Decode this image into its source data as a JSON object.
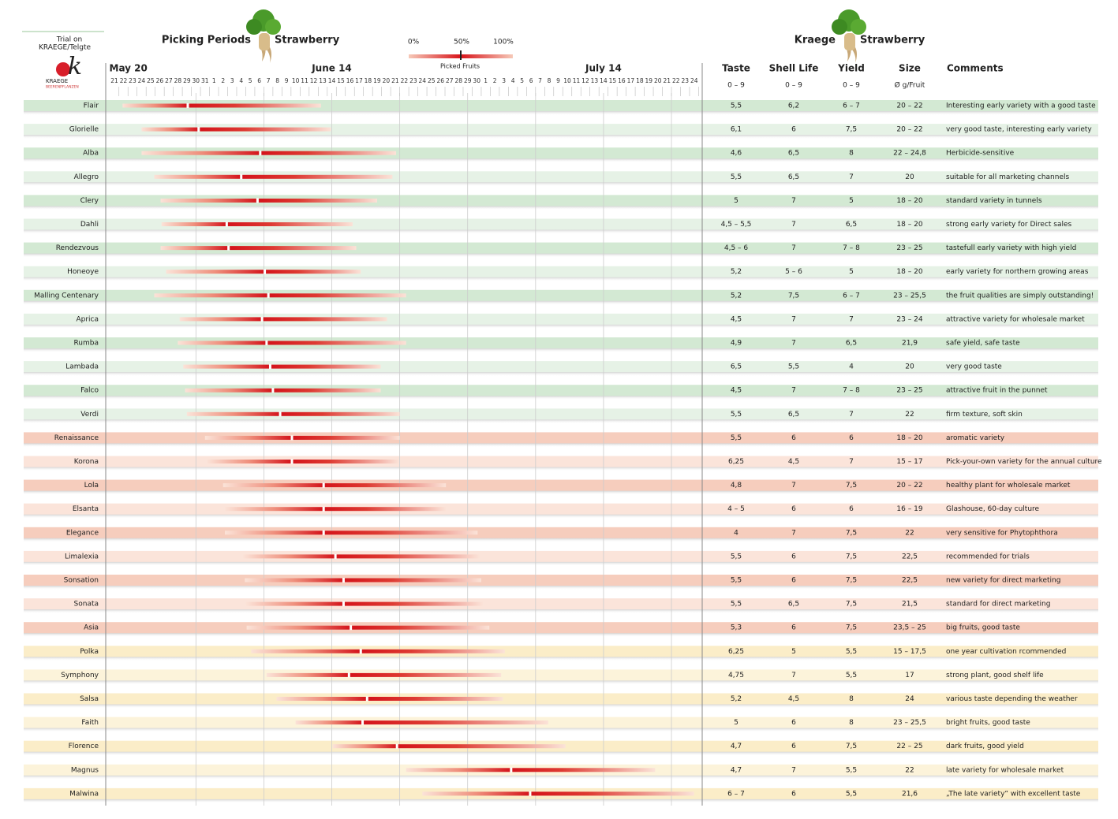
{
  "header": {
    "trial": "Trial on",
    "location": "KRAEGE/Telgte",
    "logo_letter": "k",
    "logo_name": "KRAEGE",
    "logo_sub": "BEERENPFLANZEN",
    "title": "Picking Periods",
    "title_crop": "Strawberry",
    "right_title": "Kraege",
    "right_crop": "Strawberry"
  },
  "legend": {
    "ticks": [
      "0%",
      "50%",
      "100%"
    ],
    "label": "Picked Fruits"
  },
  "timeline": {
    "months": [
      {
        "label": "May 20",
        "day": -1
      },
      {
        "label": "June 14",
        "day": 24
      },
      {
        "label": "July 14",
        "day": 54
      }
    ],
    "days": [
      21,
      22,
      23,
      24,
      25,
      26,
      27,
      28,
      29,
      30,
      31,
      1,
      2,
      3,
      4,
      5,
      6,
      7,
      8,
      9,
      10,
      11,
      12,
      13,
      14,
      15,
      16,
      17,
      18,
      19,
      20,
      21,
      22,
      23,
      24,
      25,
      26,
      27,
      28,
      29,
      30,
      1,
      2,
      3,
      4,
      5,
      6,
      7,
      8,
      9,
      10,
      11,
      12,
      13,
      14,
      15,
      16,
      17,
      18,
      19,
      20,
      21,
      22,
      23,
      24
    ]
  },
  "columns": {
    "taste": "Taste",
    "shell_life": "Shell Life",
    "yield": "Yield",
    "size": "Size",
    "comments": "Comments",
    "taste_scale": "0 – 9",
    "shell_life_scale": "0 – 9",
    "yield_scale": "0 – 9",
    "size_unit": "Ø g/Fruit"
  },
  "rows": [
    {
      "name": "Flair",
      "start": 0.9,
      "half": 8.1,
      "end": 22.8,
      "taste": "5,5",
      "shell_life": "6,2",
      "yield": "6 – 7",
      "size": "20 – 22",
      "comment": "Interesting early variety with a good taste"
    },
    {
      "name": "Glorielle",
      "start": 3.0,
      "half": 9.3,
      "end": 23.9,
      "taste": "6,1",
      "shell_life": "6",
      "yield": "7,5",
      "size": "20 – 22",
      "comment": "very good taste, interesting early variety"
    },
    {
      "name": "Alba",
      "start": 3.0,
      "half": 16.1,
      "end": 31.1,
      "taste": "4,6",
      "shell_life": "6,5",
      "yield": "8",
      "size": "22 – 24,8",
      "comment": "Herbicide-sensitive"
    },
    {
      "name": "Allegro",
      "start": 4.4,
      "half": 14.0,
      "end": 30.7,
      "taste": "5,5",
      "shell_life": "6,5",
      "yield": "7",
      "size": "20",
      "comment": "suitable for all marketing channels"
    },
    {
      "name": "Clery",
      "start": 5.1,
      "half": 15.8,
      "end": 29.0,
      "taste": "5",
      "shell_life": "7",
      "yield": "5",
      "size": "18 – 20",
      "comment": "standard variety in tunnels"
    },
    {
      "name": "Dahli",
      "start": 5.2,
      "half": 12.4,
      "end": 26.3,
      "taste": "4,5 – 5,5",
      "shell_life": "7",
      "yield": "6,5",
      "size": "18 – 20",
      "comment": "strong early variety for Direct sales"
    },
    {
      "name": "Rendezvous",
      "start": 5.1,
      "half": 12.6,
      "end": 26.7,
      "taste": "4,5 – 6",
      "shell_life": "7",
      "yield": "7 – 8",
      "size": "23 – 25",
      "comment": "tastefull early variety with high yield"
    },
    {
      "name": "Honeoye",
      "start": 5.7,
      "half": 16.6,
      "end": 27.2,
      "taste": "5,2",
      "shell_life": "5 – 6",
      "yield": "5",
      "size": "18 – 20",
      "comment": "early variety for northern growing areas"
    },
    {
      "name": "Malling Centenary",
      "start": 4.4,
      "half": 17.0,
      "end": 32.2,
      "taste": "5,2",
      "shell_life": "7,5",
      "yield": "6 – 7",
      "size": "23 – 25,5",
      "comment": "the fruit qualities are simply outstanding!"
    },
    {
      "name": "Aprica",
      "start": 7.2,
      "half": 16.3,
      "end": 30.1,
      "taste": "4,5",
      "shell_life": "7",
      "yield": "7",
      "size": "23 – 24",
      "comment": "attractive variety for wholesale market"
    },
    {
      "name": "Rumba",
      "start": 7.0,
      "half": 16.8,
      "end": 32.2,
      "taste": "4,9",
      "shell_life": "7",
      "yield": "6,5",
      "size": "21,9",
      "comment": "safe yield, safe taste"
    },
    {
      "name": "Lambada",
      "start": 7.6,
      "half": 17.2,
      "end": 29.4,
      "taste": "6,5",
      "shell_life": "5,5",
      "yield": "4",
      "size": "20",
      "comment": "very good taste"
    },
    {
      "name": "Falco",
      "start": 7.8,
      "half": 17.5,
      "end": 29.4,
      "taste": "4,5",
      "shell_life": "7",
      "yield": "7 – 8",
      "size": "23 – 25",
      "comment": "attractive fruit in the punnet"
    },
    {
      "name": "Verdi",
      "start": 8.0,
      "half": 18.3,
      "end": 31.5,
      "taste": "5,5",
      "shell_life": "6,5",
      "yield": "7",
      "size": "22",
      "comment": "firm texture, soft skin"
    },
    {
      "name": "Renaissance",
      "start": 10.0,
      "half": 19.6,
      "end": 31.5,
      "taste": "5,5",
      "shell_life": "6",
      "yield": "6",
      "size": "18 – 20",
      "comment": "aromatic variety"
    },
    {
      "name": "Korona",
      "start": 10.2,
      "half": 19.6,
      "end": 31.4,
      "taste": "6,25",
      "shell_life": "4,5",
      "yield": "7",
      "size": "15 – 17",
      "comment": "Pick-your-own variety for the annual culture"
    },
    {
      "name": "Lola",
      "start": 12.0,
      "half": 23.1,
      "end": 36.6,
      "taste": "4,8",
      "shell_life": "7",
      "yield": "7,5",
      "size": "20 – 22",
      "comment": "healthy plant for wholesale market"
    },
    {
      "name": "Elsanta",
      "start": 12.2,
      "half": 23.1,
      "end": 36.6,
      "taste": "4 – 5",
      "shell_life": "6",
      "yield": "6",
      "size": "16 – 19",
      "comment": "Glashouse, 60-day culture"
    },
    {
      "name": "Elegance",
      "start": 12.2,
      "half": 23.1,
      "end": 40.1,
      "taste": "4",
      "shell_life": "7",
      "yield": "7,5",
      "size": "22",
      "comment": "very sensitive for Phytophthora"
    },
    {
      "name": "Limalexia",
      "start": 14.2,
      "half": 24.4,
      "end": 40.3,
      "taste": "5,5",
      "shell_life": "6",
      "yield": "7,5",
      "size": "22,5",
      "comment": "recommended for trials"
    },
    {
      "name": "Sonsation",
      "start": 14.4,
      "half": 25.3,
      "end": 40.5,
      "taste": "5,5",
      "shell_life": "6",
      "yield": "7,5",
      "size": "22,5",
      "comment": "new variety for direct marketing"
    },
    {
      "name": "Sonata",
      "start": 14.5,
      "half": 25.3,
      "end": 40.7,
      "taste": "5,5",
      "shell_life": "6,5",
      "yield": "7,5",
      "size": "21,5",
      "comment": "standard for direct marketing"
    },
    {
      "name": "Asia",
      "start": 14.6,
      "half": 26.1,
      "end": 41.4,
      "taste": "5,3",
      "shell_life": "6",
      "yield": "7,5",
      "size": "23,5 – 25",
      "comment": "big fruits, good taste"
    },
    {
      "name": "Polka",
      "start": 15.1,
      "half": 27.2,
      "end": 43.1,
      "taste": "6,25",
      "shell_life": "5",
      "yield": "5,5",
      "size": "15 – 17,5",
      "comment": "one year cultivation rcommended"
    },
    {
      "name": "Symphony",
      "start": 16.8,
      "half": 25.9,
      "end": 42.7,
      "taste": "4,75",
      "shell_life": "7",
      "yield": "5,5",
      "size": "17",
      "comment": "strong plant, good shelf life"
    },
    {
      "name": "Salsa",
      "start": 17.9,
      "half": 27.9,
      "end": 42.9,
      "taste": "5,2",
      "shell_life": "4,5",
      "yield": "8",
      "size": "24",
      "comment": "various taste depending the weather"
    },
    {
      "name": "Faith",
      "start": 20.0,
      "half": 27.4,
      "end": 47.9,
      "taste": "5",
      "shell_life": "6",
      "yield": "8",
      "size": "23 – 25,5",
      "comment": "bright fruits, good taste"
    },
    {
      "name": "Florence",
      "start": 24.1,
      "half": 31.2,
      "end": 49.8,
      "taste": "4,7",
      "shell_life": "6",
      "yield": "7,5",
      "size": "22 – 25",
      "comment": "dark fruits, good yield"
    },
    {
      "name": "Magnus",
      "start": 32.2,
      "half": 43.8,
      "end": 59.7,
      "taste": "4,7",
      "shell_life": "7",
      "yield": "5,5",
      "size": "22",
      "comment": "late variety for wholesale market"
    },
    {
      "name": "Malwina",
      "start": 34.0,
      "half": 45.9,
      "end": 64.0,
      "taste": "6 – 7",
      "shell_life": "6",
      "yield": "5,5",
      "size": "21,6",
      "comment": "„The late variety“ with excellent taste"
    }
  ]
}
